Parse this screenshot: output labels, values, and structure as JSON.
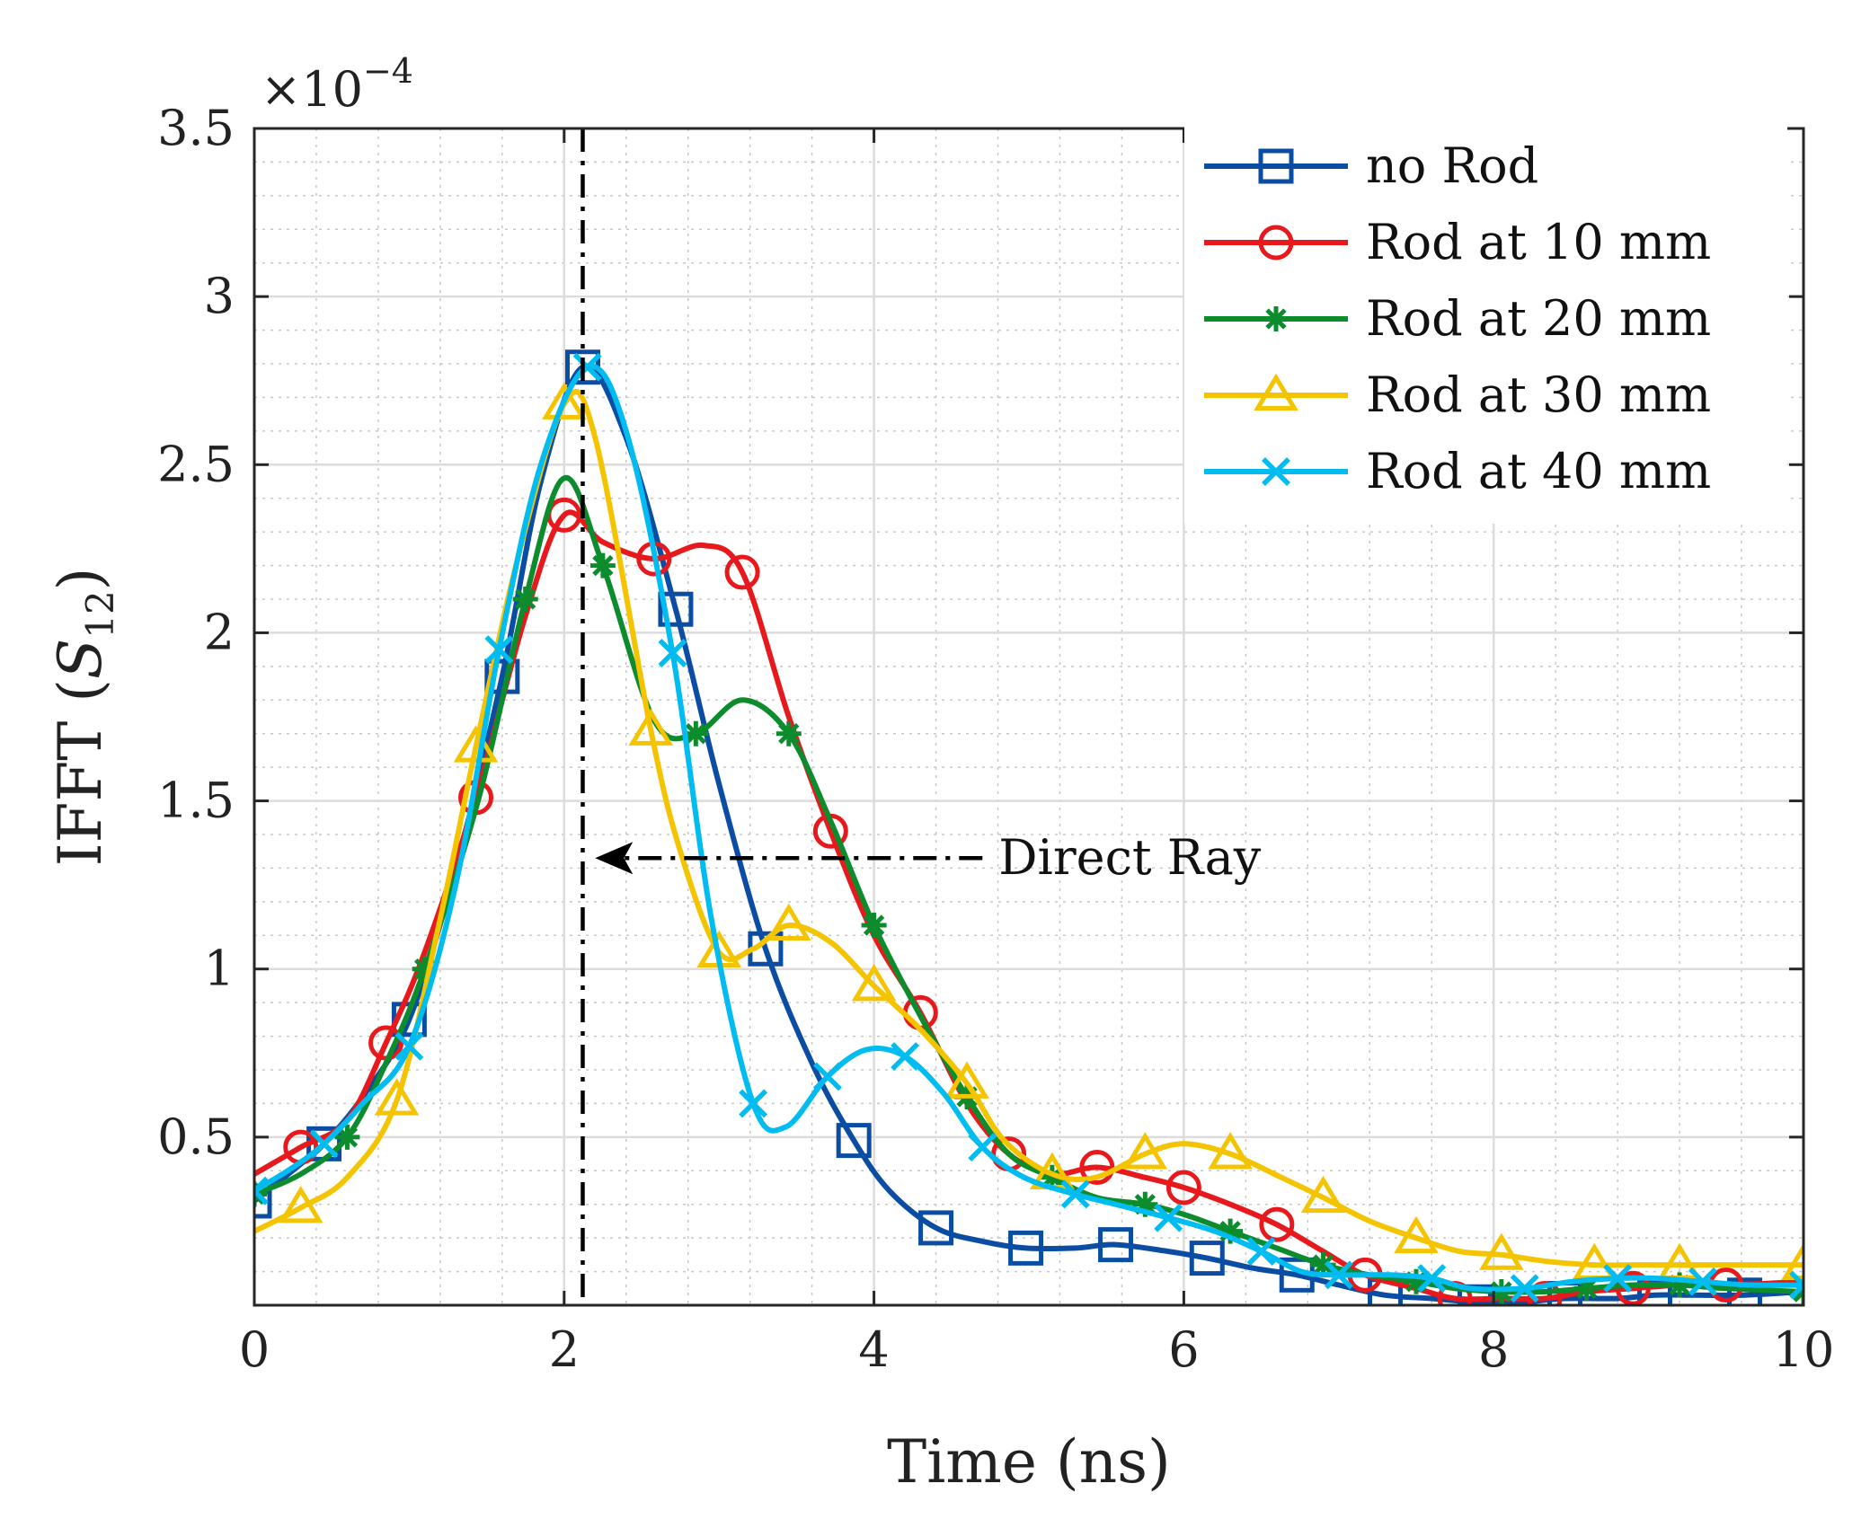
{
  "chart_data": {
    "type": "line",
    "title": "",
    "xlabel": "Time (ns)",
    "ylabel": {
      "prefix": "IFFT (",
      "symbol": "S",
      "subscript": "12",
      "suffix": ")"
    },
    "y_exponent": {
      "base": "×10",
      "power": "−4"
    },
    "xlim": [
      0,
      10
    ],
    "ylim": [
      0,
      3.5
    ],
    "xticks": [
      0,
      2,
      4,
      6,
      8,
      10
    ],
    "xtick_labels": [
      "0",
      "2",
      "4",
      "6",
      "8",
      "10"
    ],
    "yticks": [
      0.5,
      1,
      1.5,
      2,
      2.5,
      3,
      3.5
    ],
    "ytick_labels": [
      "0.5",
      "1",
      "1.5",
      "2",
      "2.5",
      "3",
      "3.5"
    ],
    "grid": true,
    "minor_grid": true,
    "legend_position": "top-right",
    "annotations": [
      {
        "text": "Direct Ray",
        "arrow_from": [
          4.7,
          1.33
        ],
        "arrow_to": [
          2.2,
          1.33
        ]
      }
    ],
    "vertical_lines": [
      {
        "x": 2.12,
        "style": "dash-dot"
      }
    ],
    "series": [
      {
        "name": "no Rod",
        "color": "#0b4da2",
        "marker": "square",
        "x": [
          0,
          0.3,
          0.45,
          0.7,
          1.0,
          1.3,
          1.6,
          1.85,
          2.12,
          2.4,
          2.72,
          3.0,
          3.3,
          3.6,
          3.87,
          4.1,
          4.4,
          4.7,
          4.98,
          5.3,
          5.56,
          5.9,
          6.15,
          6.45,
          6.73,
          7.0,
          7.3,
          7.6,
          7.88,
          8.2,
          8.46,
          8.8,
          9.04,
          9.3,
          9.62,
          10
        ],
        "y": [
          0.31,
          0.42,
          0.48,
          0.62,
          0.85,
          1.3,
          1.87,
          2.45,
          2.79,
          2.58,
          2.07,
          1.55,
          1.06,
          0.72,
          0.49,
          0.34,
          0.23,
          0.19,
          0.17,
          0.17,
          0.18,
          0.16,
          0.14,
          0.11,
          0.09,
          0.06,
          0.03,
          0.02,
          0.01,
          0.01,
          0.02,
          0.02,
          0.03,
          0.03,
          0.03,
          0.04
        ]
      },
      {
        "name": "Rod at 10 mm",
        "color": "#e8191c",
        "marker": "circle",
        "x": [
          0,
          0.3,
          0.6,
          0.85,
          1.1,
          1.43,
          1.75,
          2.0,
          2.25,
          2.58,
          2.9,
          3.15,
          3.45,
          3.72,
          4.0,
          4.3,
          4.6,
          4.87,
          5.15,
          5.44,
          5.75,
          6.0,
          6.3,
          6.6,
          6.9,
          7.17,
          7.5,
          7.75,
          8.05,
          8.33,
          8.6,
          8.9,
          9.2,
          9.5,
          10
        ],
        "y": [
          0.39,
          0.47,
          0.55,
          0.78,
          1.05,
          1.51,
          2.05,
          2.35,
          2.27,
          2.22,
          2.26,
          2.18,
          1.75,
          1.41,
          1.1,
          0.87,
          0.6,
          0.45,
          0.39,
          0.41,
          0.38,
          0.35,
          0.3,
          0.24,
          0.16,
          0.09,
          0.05,
          0.02,
          0.02,
          0.02,
          0.04,
          0.05,
          0.06,
          0.06,
          0.07
        ]
      },
      {
        "name": "Rod at 20 mm",
        "color": "#0c8c2c",
        "marker": "asterisk",
        "x": [
          0,
          0.3,
          0.6,
          0.85,
          1.1,
          1.45,
          1.75,
          2.0,
          2.25,
          2.58,
          2.85,
          3.15,
          3.45,
          3.72,
          4.0,
          4.3,
          4.6,
          4.87,
          5.15,
          5.44,
          5.75,
          6.0,
          6.3,
          6.6,
          6.9,
          7.2,
          7.5,
          7.75,
          8.05,
          8.33,
          8.6,
          8.9,
          9.2,
          9.5,
          10
        ],
        "y": [
          0.33,
          0.39,
          0.5,
          0.72,
          1.0,
          1.51,
          2.1,
          2.46,
          2.2,
          1.74,
          1.7,
          1.8,
          1.7,
          1.44,
          1.13,
          0.86,
          0.62,
          0.45,
          0.38,
          0.32,
          0.3,
          0.27,
          0.22,
          0.17,
          0.12,
          0.09,
          0.07,
          0.05,
          0.04,
          0.04,
          0.05,
          0.06,
          0.06,
          0.05,
          0.04
        ]
      },
      {
        "name": "Rod at 30 mm",
        "color": "#f5c400",
        "marker": "triangle",
        "x": [
          0,
          0.3,
          0.6,
          0.92,
          1.2,
          1.43,
          1.7,
          2.0,
          2.2,
          2.56,
          2.75,
          3.0,
          3.22,
          3.45,
          3.72,
          4.0,
          4.3,
          4.6,
          4.84,
          5.15,
          5.43,
          5.75,
          6.0,
          6.3,
          6.63,
          6.9,
          7.2,
          7.5,
          7.78,
          8.05,
          8.35,
          8.65,
          8.92,
          9.2,
          9.5,
          10
        ],
        "y": [
          0.22,
          0.29,
          0.38,
          0.61,
          1.15,
          1.66,
          2.22,
          2.68,
          2.58,
          1.71,
          1.35,
          1.05,
          1.06,
          1.13,
          1.08,
          0.95,
          0.82,
          0.66,
          0.49,
          0.39,
          0.38,
          0.45,
          0.48,
          0.45,
          0.38,
          0.32,
          0.25,
          0.2,
          0.16,
          0.15,
          0.13,
          0.12,
          0.12,
          0.12,
          0.12,
          0.12
        ]
      },
      {
        "name": "Rod at 40 mm",
        "color": "#00bcf0",
        "marker": "x",
        "x": [
          0,
          0.25,
          0.45,
          0.7,
          1.0,
          1.3,
          1.58,
          1.85,
          2.15,
          2.4,
          2.7,
          2.95,
          3.22,
          3.43,
          3.7,
          3.95,
          4.2,
          4.45,
          4.7,
          4.97,
          5.3,
          5.56,
          5.9,
          6.2,
          6.5,
          6.76,
          7.0,
          7.33,
          7.6,
          7.85,
          8.2,
          8.5,
          8.8,
          9.06,
          9.35,
          9.65,
          10
        ],
        "y": [
          0.34,
          0.41,
          0.48,
          0.6,
          0.77,
          1.25,
          1.95,
          2.5,
          2.79,
          2.6,
          1.94,
          1.15,
          0.6,
          0.53,
          0.68,
          0.76,
          0.74,
          0.63,
          0.47,
          0.38,
          0.33,
          0.3,
          0.26,
          0.22,
          0.16,
          0.1,
          0.09,
          0.09,
          0.08,
          0.05,
          0.05,
          0.07,
          0.08,
          0.08,
          0.07,
          0.06,
          0.06
        ]
      }
    ]
  }
}
